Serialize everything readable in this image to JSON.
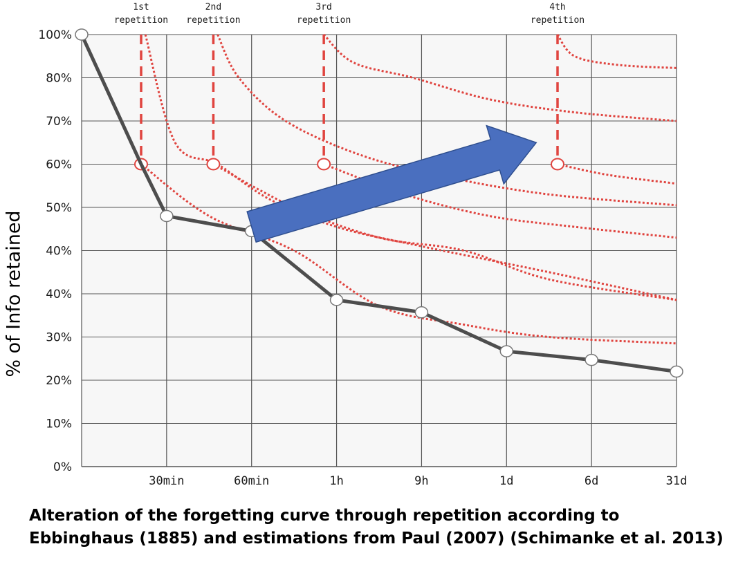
{
  "chart_data": {
    "type": "line",
    "ylabel": "% of Info retained",
    "y_tick_labels": [
      "0%",
      "10%",
      "20%",
      "30%",
      "40%",
      "40%",
      "50%",
      "60%",
      "70%",
      "80%",
      "100%"
    ],
    "x_tick_labels": [
      "30min",
      "60min",
      "1h",
      "9h",
      "1d",
      "6d",
      "31d"
    ],
    "grid": true,
    "series": [
      {
        "name": "",
        "color": "#4d4d4d",
        "style": "solid",
        "points": [
          {
            "x": 0,
            "y": 100
          },
          {
            "x": 0.7,
            "y": 60
          },
          {
            "x": 1,
            "y": 48
          },
          {
            "x": 2,
            "y": 44.5
          },
          {
            "x": 3,
            "y": 36
          },
          {
            "x": 4,
            "y": 34
          },
          {
            "x": 5,
            "y": 26.7
          },
          {
            "x": 6,
            "y": 24.7
          },
          {
            "x": 7,
            "y": 22
          }
        ]
      }
    ],
    "repetitions": [
      {
        "label": [
          "1st",
          "repetition"
        ],
        "x": 0.7,
        "y": 60,
        "curve": [
          [
            0.7,
            60
          ],
          [
            1.5,
            48
          ],
          [
            2.5,
            40
          ],
          [
            3.5,
            35
          ],
          [
            4.5,
            32
          ],
          [
            5.5,
            30
          ],
          [
            7,
            28.5
          ]
        ]
      },
      {
        "label": [
          "2nd",
          "repetition"
        ],
        "x": 1.55,
        "y": 60,
        "curve": [
          [
            1.55,
            60
          ],
          [
            2.5,
            50
          ],
          [
            3.5,
            43
          ],
          [
            4.5,
            40
          ],
          [
            5.5,
            38
          ],
          [
            7,
            36
          ]
        ]
      },
      {
        "label": [
          "3rd",
          "repetition"
        ],
        "x": 2.85,
        "y": 60,
        "curve": [
          [
            2.85,
            60
          ],
          [
            3.8,
            53
          ],
          [
            4.8,
            48
          ],
          [
            5.8,
            45.5
          ],
          [
            7,
            43
          ]
        ]
      },
      {
        "label": [
          "4th",
          "repetition"
        ],
        "x": 5.6,
        "y": 60,
        "curve": [
          [
            5.6,
            60
          ],
          [
            6.2,
            57.5
          ],
          [
            7,
            55.5
          ]
        ]
      }
    ],
    "repetition_upper_curves": [
      [
        [
          0.75,
          100
        ],
        [
          1.1,
          65
        ],
        [
          1.6,
          60
        ],
        [
          2.2,
          52
        ],
        [
          3,
          45.5
        ],
        [
          4,
          41
        ],
        [
          5.5,
          38.5
        ],
        [
          7,
          36
        ]
      ],
      [
        [
          1.6,
          100
        ],
        [
          1.85,
          80
        ],
        [
          2.4,
          70
        ],
        [
          3.3,
          62
        ],
        [
          4.3,
          57
        ],
        [
          5.5,
          53
        ],
        [
          7,
          50.5
        ]
      ],
      [
        [
          2.85,
          100
        ],
        [
          3.2,
          87
        ],
        [
          3.9,
          80
        ],
        [
          4.8,
          75
        ],
        [
          5.8,
          72
        ],
        [
          7,
          70
        ]
      ],
      [
        [
          5.6,
          100
        ],
        [
          5.8,
          90
        ],
        [
          6.3,
          86
        ],
        [
          7,
          84.5
        ]
      ]
    ],
    "repetition_color": "#e0443f",
    "arrow": {
      "from": {
        "x": 2,
        "y": 45.5
      },
      "to": {
        "x": 5.35,
        "y": 65
      },
      "color": "#4a6fbf"
    }
  },
  "caption": {
    "line1": "Alteration of the forgetting curve through repetition according to",
    "line2": "Ebbinghaus (1885) and estimations from Paul (2007) (Schimanke et al. 2013)"
  }
}
